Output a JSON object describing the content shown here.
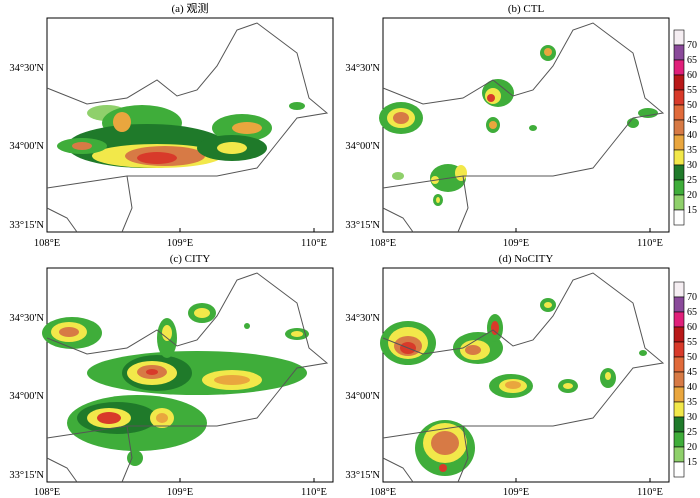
{
  "figure": {
    "panels": [
      {
        "id": "a",
        "title": "(a) 观测"
      },
      {
        "id": "b",
        "title": "(b) CTL"
      },
      {
        "id": "c",
        "title": "(c) CITY"
      },
      {
        "id": "d",
        "title": "(d) NoCITY"
      }
    ],
    "x_ticks": [
      "108°E",
      "109°E",
      "110°E"
    ],
    "y_ticks": [
      "34°30'N",
      "34°00'N",
      "33°15'N"
    ],
    "colorbar_levels": [
      "15",
      "20",
      "25",
      "30",
      "35",
      "40",
      "45",
      "50",
      "55",
      "60",
      "65",
      "70"
    ],
    "colors": {
      "15": "#ffffff",
      "20": "#8fd06b",
      "25": "#3fad3a",
      "30": "#1f7a2a",
      "35": "#f2e84a",
      "40": "#e9a63e",
      "45": "#d77a45",
      "50": "#e06a3a",
      "55": "#d83a2a",
      "60": "#b81818",
      "65": "#e0207a",
      "70": "#8a4a9a",
      "top": "#f5eef2"
    }
  },
  "chart_data": [
    {
      "type": "heatmap",
      "title": "(a) 观测",
      "x_ticks": [
        108,
        109,
        110
      ],
      "y_ticks_labels": [
        "34°30'N",
        "34°00'N",
        "33°15'N"
      ],
      "xlim": [
        108,
        110.1
      ],
      "ylim": [
        33.25,
        34.75
      ],
      "cells": [
        {
          "lon": 108.8,
          "lat": 33.96,
          "value": 45
        },
        {
          "lon": 108.75,
          "lat": 33.95,
          "value": 50
        },
        {
          "lon": 108.3,
          "lat": 33.98,
          "value": 40
        },
        {
          "lon": 108.7,
          "lat": 34.1,
          "value": 40
        },
        {
          "lon": 109.5,
          "lat": 34.08,
          "value": 40
        },
        {
          "lon": 109.3,
          "lat": 34.0,
          "value": 35
        },
        {
          "lon": 108.3,
          "lat": 34.15,
          "value": 25
        }
      ]
    },
    {
      "type": "heatmap",
      "title": "(b) CTL",
      "x_ticks": [
        108,
        109,
        110
      ],
      "y_ticks_labels": [
        "34°30'N",
        "34°00'N",
        "33°15'N"
      ],
      "xlim": [
        108,
        110.1
      ],
      "ylim": [
        33.25,
        34.75
      ],
      "cells": [
        {
          "lon": 108.1,
          "lat": 34.1,
          "value": 40
        },
        {
          "lon": 108.85,
          "lat": 34.25,
          "value": 50
        },
        {
          "lon": 108.85,
          "lat": 34.08,
          "value": 40
        },
        {
          "lon": 109.22,
          "lat": 34.55,
          "value": 40
        },
        {
          "lon": 109.85,
          "lat": 34.1,
          "value": 25
        },
        {
          "lon": 108.65,
          "lat": 33.82,
          "value": 35
        },
        {
          "lon": 108.55,
          "lat": 33.62,
          "value": 35
        }
      ]
    },
    {
      "type": "heatmap",
      "title": "(c) CITY",
      "x_ticks": [
        108,
        109,
        110
      ],
      "y_ticks_labels": [
        "34°30'N",
        "34°00'N",
        "33°15'N"
      ],
      "xlim": [
        108,
        110.1
      ],
      "ylim": [
        33.25,
        34.75
      ],
      "cells": [
        {
          "lon": 108.8,
          "lat": 34.0,
          "value": 55
        },
        {
          "lon": 108.45,
          "lat": 33.73,
          "value": 55
        },
        {
          "lon": 109.4,
          "lat": 34.0,
          "value": 45
        },
        {
          "lon": 108.05,
          "lat": 34.1,
          "value": 40
        },
        {
          "lon": 108.65,
          "lat": 33.72,
          "value": 40
        },
        {
          "lon": 109.2,
          "lat": 34.55,
          "value": 35
        },
        {
          "lon": 108.9,
          "lat": 34.3,
          "value": 40
        },
        {
          "lon": 109.9,
          "lat": 34.1,
          "value": 30
        }
      ]
    },
    {
      "type": "heatmap",
      "title": "(d) NoCITY",
      "x_ticks": [
        108,
        109,
        110
      ],
      "y_ticks_labels": [
        "34°30'N",
        "34°00'N",
        "33°15'N"
      ],
      "xlim": [
        108,
        110.1
      ],
      "ylim": [
        33.25,
        34.75
      ],
      "cells": [
        {
          "lon": 108.15,
          "lat": 34.05,
          "value": 60
        },
        {
          "lon": 108.6,
          "lat": 34.05,
          "value": 50
        },
        {
          "lon": 108.95,
          "lat": 34.3,
          "value": 50
        },
        {
          "lon": 109.05,
          "lat": 34.0,
          "value": 40
        },
        {
          "lon": 108.5,
          "lat": 33.6,
          "value": 40
        },
        {
          "lon": 109.2,
          "lat": 34.55,
          "value": 30
        },
        {
          "lon": 109.55,
          "lat": 34.0,
          "value": 35
        },
        {
          "lon": 109.85,
          "lat": 34.05,
          "value": 25
        }
      ]
    }
  ]
}
